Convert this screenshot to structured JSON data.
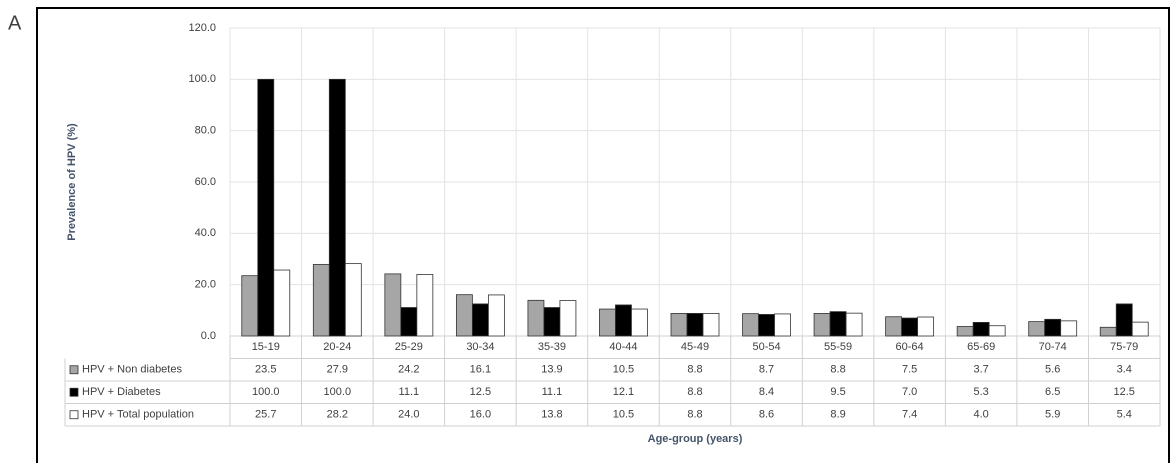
{
  "panel_label": "A",
  "chart_data": {
    "type": "bar",
    "y_label": "Prevalence of HPV (%)",
    "x_label": "Age-group (years)",
    "categories": [
      "15-19",
      "20-24",
      "25-29",
      "30-34",
      "35-39",
      "40-44",
      "45-49",
      "50-54",
      "55-59",
      "60-64",
      "65-69",
      "70-74",
      "75-79"
    ],
    "series": [
      {
        "name": "HPV + Non diabetes",
        "color": "#a6a6a6",
        "values": [
          23.5,
          27.9,
          24.2,
          16.1,
          13.9,
          10.5,
          8.8,
          8.7,
          8.8,
          7.5,
          3.7,
          5.6,
          3.4
        ],
        "value_labels": [
          "23.5",
          "27.9",
          "24.2",
          "16.1",
          "13.9",
          "10.5",
          "8.8",
          "8.7",
          "8.8",
          "7.5",
          "3.7",
          "5.6",
          "3.4"
        ]
      },
      {
        "name": "HPV + Diabetes",
        "color": "#000000",
        "values": [
          100,
          100,
          11.1,
          12.5,
          11.1,
          12.1,
          8.8,
          8.4,
          9.5,
          7.0,
          5.3,
          6.5,
          12.5
        ],
        "value_labels": [
          "100.0",
          "100.0",
          "11.1",
          "12.5",
          "11.1",
          "12.1",
          "8.8",
          "8.4",
          "9.5",
          "7.0",
          "5.3",
          "6.5",
          "12.5"
        ]
      },
      {
        "name": "HPV + Total population",
        "color": "#ffffff",
        "values": [
          25.7,
          28.2,
          24.0,
          16.0,
          13.8,
          10.5,
          8.8,
          8.6,
          8.9,
          7.4,
          4.0,
          5.9,
          5.4
        ],
        "value_labels": [
          "25.7",
          "28.2",
          "24.0",
          "16.0",
          "13.8",
          "10.5",
          "8.8",
          "8.6",
          "8.9",
          "7.4",
          "4.0",
          "5.9",
          "5.4"
        ]
      }
    ],
    "ylim": [
      0,
      120
    ],
    "yticks": [
      {
        "value": 0,
        "label": "0.0"
      },
      {
        "value": 20,
        "label": "20.0"
      },
      {
        "value": 40,
        "label": "40.0"
      },
      {
        "value": 60,
        "label": "60.0"
      },
      {
        "value": 80,
        "label": "80.0"
      },
      {
        "value": 100,
        "label": "100.0"
      },
      {
        "value": 120,
        "label": "120.0"
      }
    ],
    "grid": true
  }
}
